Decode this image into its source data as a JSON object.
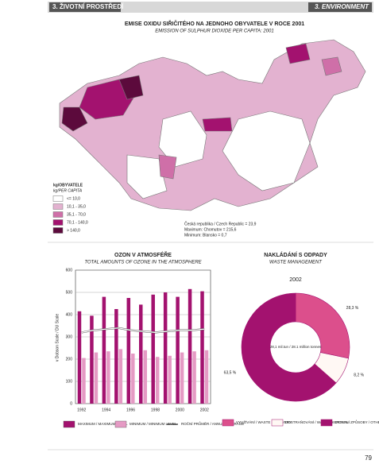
{
  "header": {
    "left": "3. ŽIVOTNÍ PROSTŘEDÍ",
    "right": "3. ENVIRONMENT"
  },
  "map": {
    "title": "EMISE OXIDU SIŘIČITÉHO NA JEDNOHO OBYVATELE V ROCE 2001",
    "subtitle": "EMISSION OF SULPHUR DIOXIDE PER CAPITA: 2001",
    "legend_title": "kg/OBYVATELE",
    "legend_subtitle": "kg/PER CAPITA",
    "legend": [
      {
        "label": "<= 10,0",
        "color": "#ffffff"
      },
      {
        "label": "10,1 - 35,0",
        "color": "#e3b2d0"
      },
      {
        "label": "35,1 - 70,0",
        "color": "#cf6fa8"
      },
      {
        "label": "70,1 - 140,0",
        "color": "#a3126f"
      },
      {
        "label": "> 140,0",
        "color": "#5c0a3c"
      }
    ],
    "notes": [
      "Česká republika / Czech Republic = 23,9",
      "Maximum: Chomutov = 215,6",
      "Minimum: Blansko = 0,7"
    ]
  },
  "chart_data": [
    {
      "type": "bar",
      "title": "OZON V ATMOSFÉŘE",
      "subtitle": "TOTAL AMOUNTS OF OZONE IN THE ATMOSPHERE",
      "y_label": "v Dobson Scale / DU Scale",
      "categories": [
        "1992",
        null,
        "1994",
        null,
        "1996",
        null,
        "1998",
        null,
        "2000",
        null,
        "2002"
      ],
      "series": [
        {
          "name": "MAXIMUM / MAXIMUM LEVEL",
          "color": "#a3126f",
          "values": [
            415,
            395,
            480,
            425,
            475,
            445,
            490,
            500,
            480,
            515,
            505
          ]
        },
        {
          "name": "MINIMUM / MINIMUM LEVEL",
          "color": "#e59ac4",
          "values": [
            205,
            230,
            235,
            245,
            225,
            240,
            210,
            215,
            230,
            235,
            240
          ]
        },
        {
          "name": "ROČNÍ PRŮMĚR / ANNUAL AVERAGE",
          "type": "line",
          "color": "#ffffff",
          "values": [
            320,
            330,
            335,
            340,
            330,
            325,
            320,
            325,
            330,
            330,
            335
          ]
        }
      ],
      "ylim": [
        0,
        600
      ],
      "yticks": [
        0,
        100,
        200,
        300,
        400,
        500,
        600
      ],
      "grid": true
    },
    {
      "type": "donut",
      "title": "NAKLÁDÁNÍ S ODPADY",
      "subtitle": "WASTE MANAGEMENT",
      "year": "2002",
      "center_label": "28,1 mil.tun / 28.1 million tonnes",
      "categories": [
        "VYUŽÍVÁNÍ / WASTE RECOVERY",
        "ODSTRAŇOVÁNÍ / WASTE DISPOSAL",
        "OSTATNÍ ZPŮSOBY / OTHER WAYS"
      ],
      "values": [
        28.3,
        8.2,
        63.5
      ],
      "value_labels": [
        "28,3 %",
        "8,2 %",
        "63,5 %"
      ],
      "colors": [
        "#dc4f8c",
        "#fff8f4",
        "#a3126f"
      ]
    }
  ],
  "page_number": "79"
}
